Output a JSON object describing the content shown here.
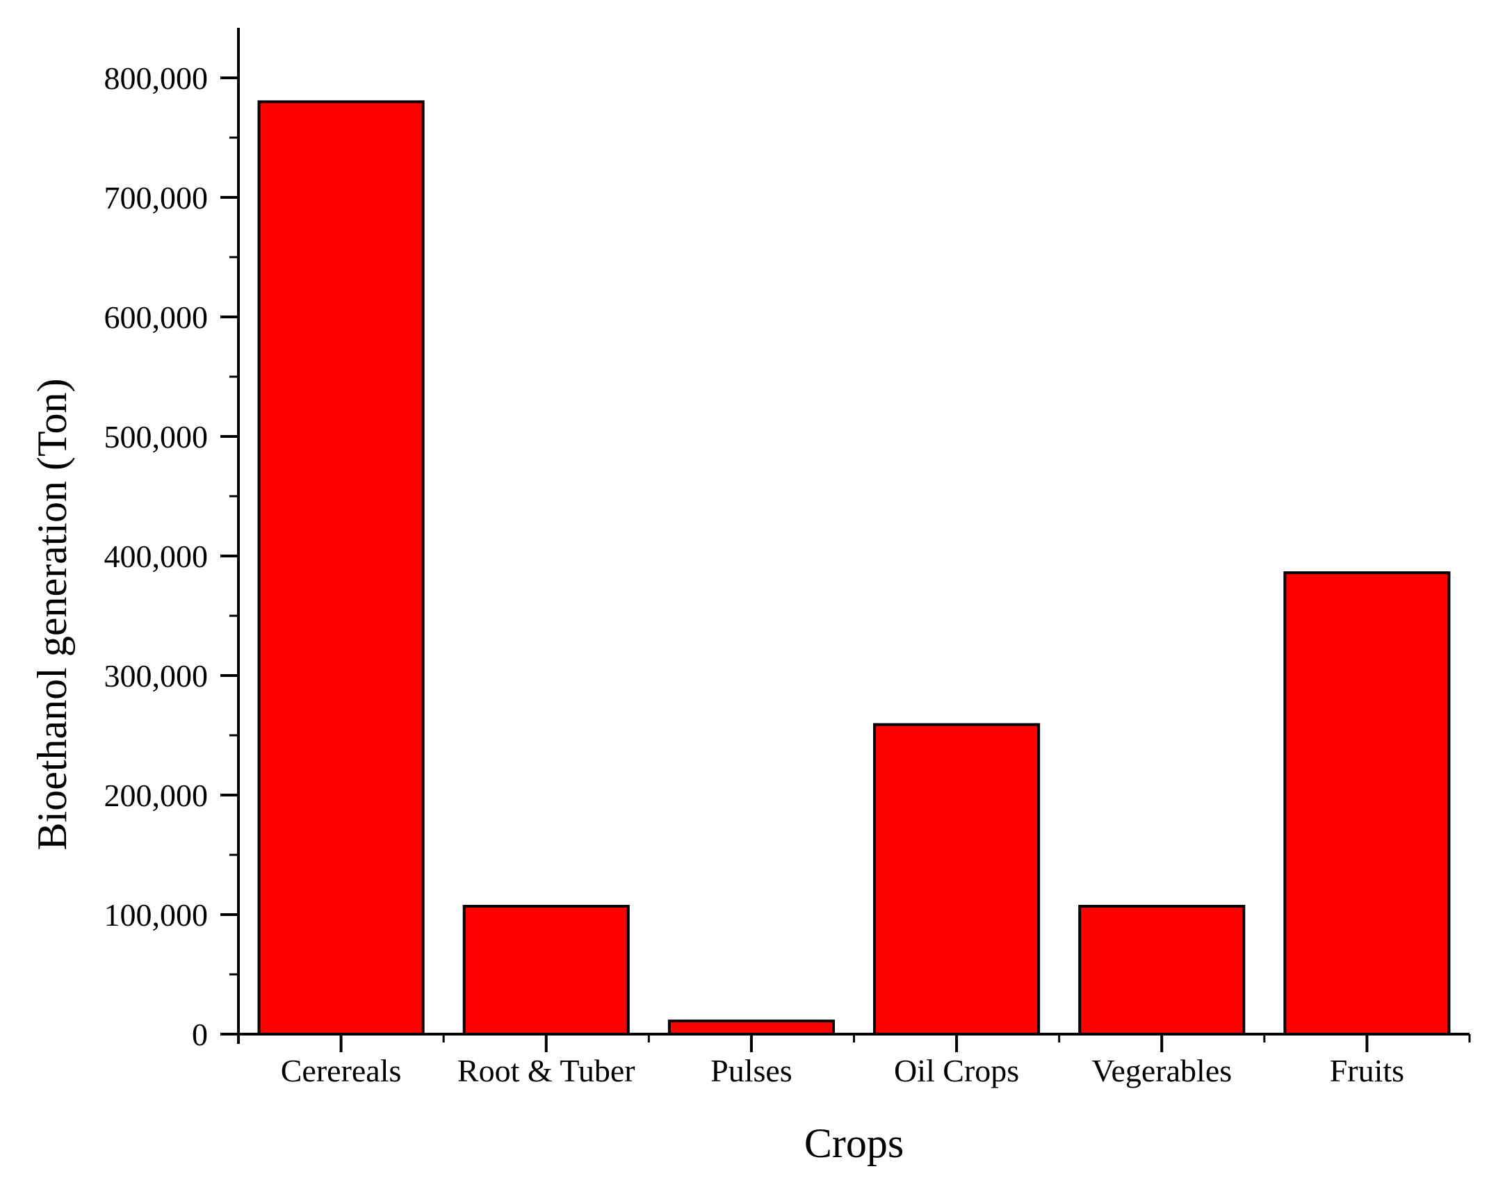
{
  "chart_data": {
    "type": "bar",
    "title": "",
    "xlabel": "Crops",
    "ylabel": "Bioethanol generation (Ton)",
    "categories": [
      "Cerereals",
      "Root & Tuber",
      "Pulses",
      "Oil Crops",
      "Vegerables",
      "Fruits"
    ],
    "values": [
      780000,
      107000,
      11000,
      259000,
      107000,
      386000
    ],
    "ylim": [
      0,
      840000
    ],
    "yticks": [
      0,
      100000,
      200000,
      300000,
      400000,
      500000,
      600000,
      700000,
      800000
    ],
    "ytick_labels": [
      "0",
      "100,000",
      "200,000",
      "300,000",
      "400,000",
      "500,000",
      "600,000",
      "700,000",
      "800,000"
    ],
    "grid": false,
    "legend": "none",
    "bar_color": "#ff0000",
    "bar_edge_color": "#000000"
  }
}
